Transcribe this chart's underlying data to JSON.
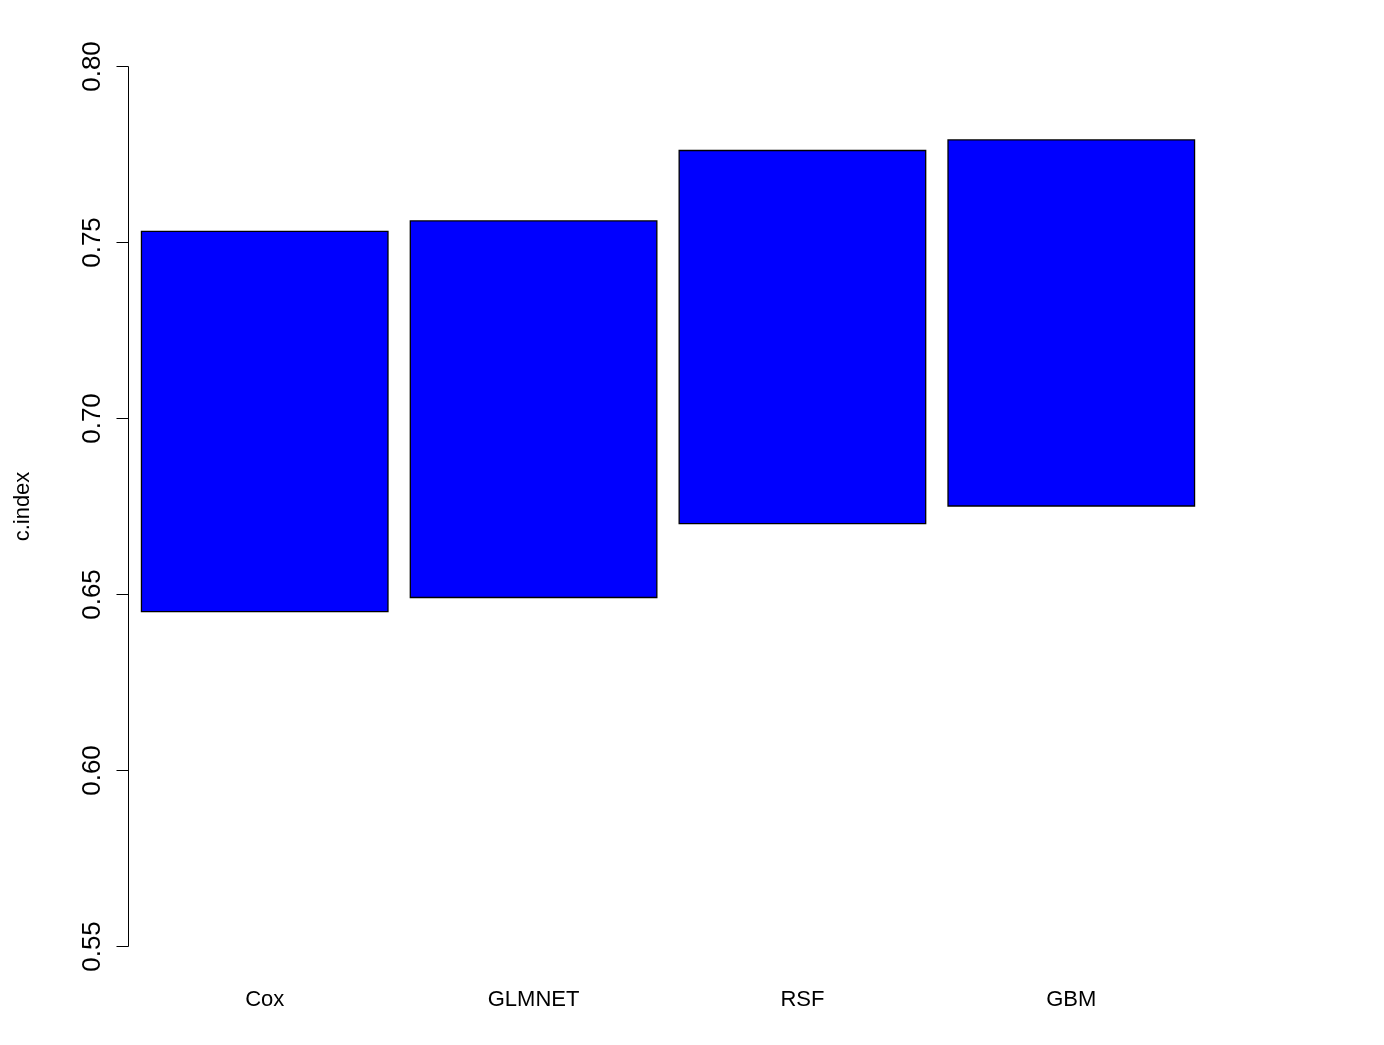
{
  "chart_data": {
    "type": "bar",
    "ylabel": "c.index",
    "categories": [
      "Cox",
      "GLMNET",
      "RSF",
      "GBM"
    ],
    "base": [
      0.645,
      0.649,
      0.67,
      0.675
    ],
    "values": [
      0.108,
      0.107,
      0.106,
      0.104
    ],
    "color": "#0000ff",
    "ylim": [
      0.55,
      0.8
    ],
    "yticks": [
      {
        "value": 0.55,
        "label": "0.55"
      },
      {
        "value": 0.6,
        "label": "0.60"
      },
      {
        "value": 0.65,
        "label": "0.65"
      },
      {
        "value": 0.7,
        "label": "0.70"
      },
      {
        "value": 0.75,
        "label": "0.75"
      },
      {
        "value": 0.8,
        "label": "0.80"
      }
    ],
    "grid": false
  }
}
